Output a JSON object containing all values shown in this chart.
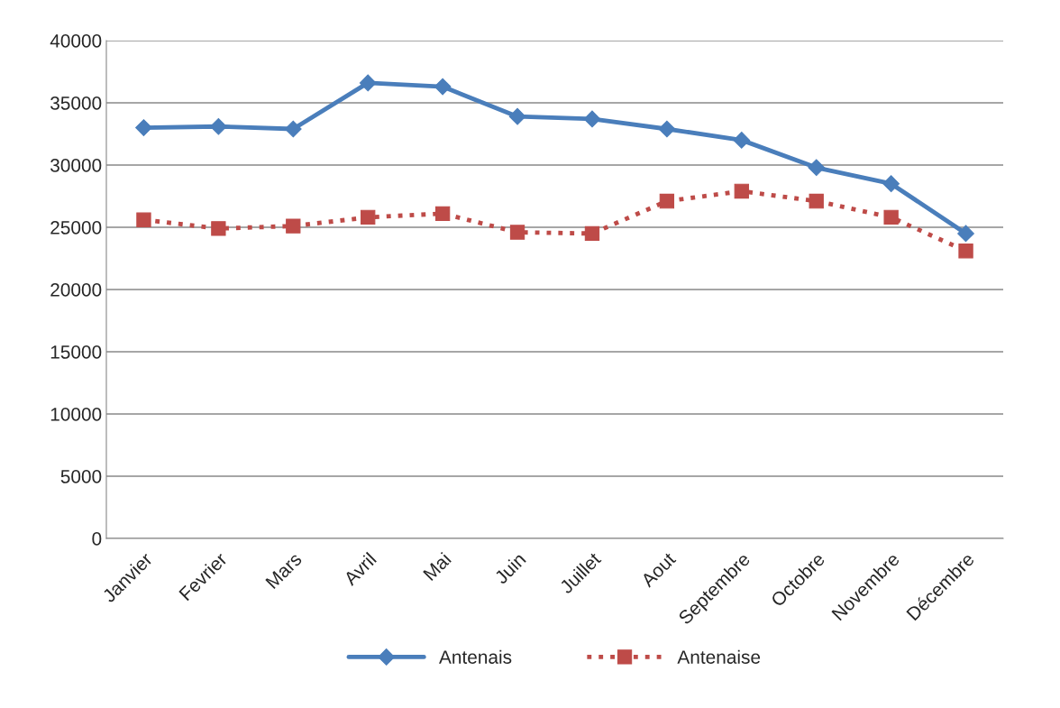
{
  "chart_data": {
    "type": "line",
    "categories": [
      "Janvier",
      "Fevrier",
      "Mars",
      "Avril",
      "Mai",
      "Juin",
      "Juillet",
      "Aout",
      "Septembre",
      "Octobre",
      "Novembre",
      "Décembre"
    ],
    "series": [
      {
        "name": "Antenais",
        "color": "#4a7ebb",
        "marker": "diamond",
        "line_style": "solid",
        "values": [
          33000,
          33100,
          32900,
          36600,
          36300,
          33900,
          33700,
          32900,
          32000,
          29800,
          28500,
          24500
        ]
      },
      {
        "name": "Antenaise",
        "color": "#be4b48",
        "marker": "square",
        "line_style": "dotted",
        "values": [
          25600,
          24900,
          25100,
          25800,
          26100,
          24600,
          24500,
          27100,
          27900,
          27100,
          25800,
          23100
        ]
      }
    ],
    "ylim": [
      0,
      40000
    ],
    "yticks": [
      0,
      5000,
      10000,
      15000,
      20000,
      25000,
      30000,
      35000,
      40000
    ],
    "grid": "y",
    "legend": "bottom"
  }
}
